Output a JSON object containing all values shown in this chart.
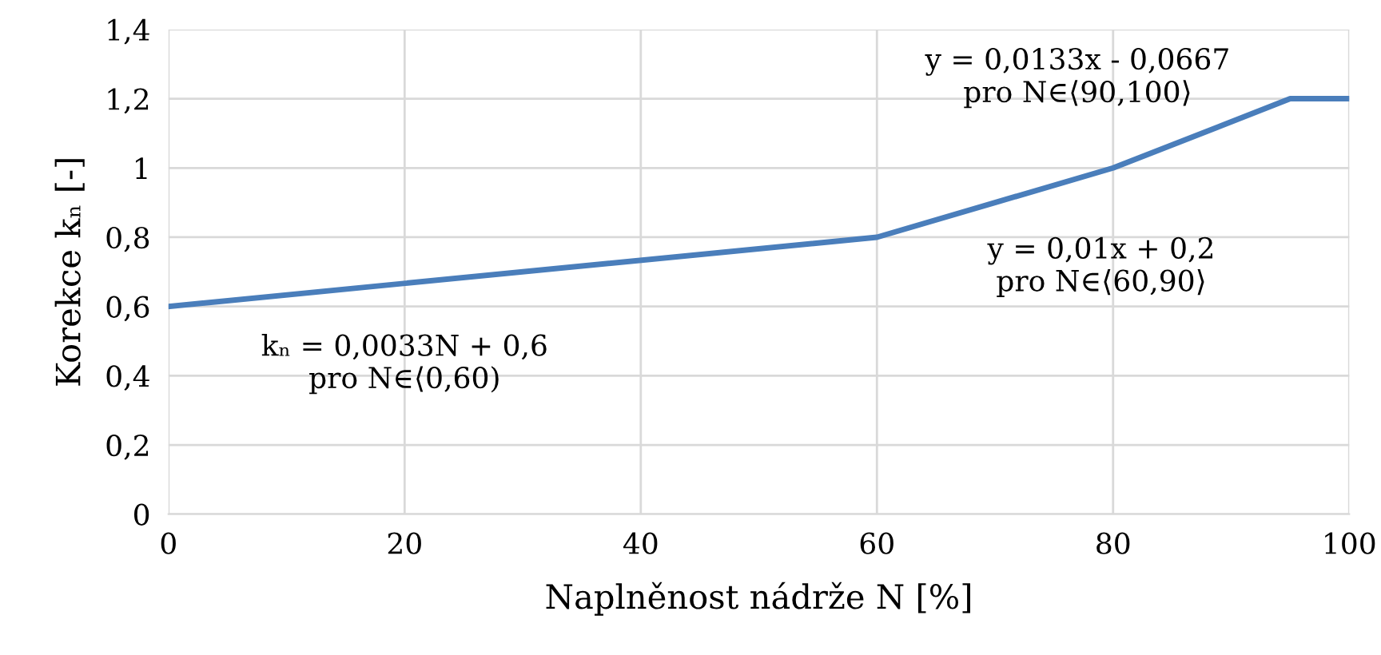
{
  "chart_data": {
    "type": "line",
    "xlabel": "Naplněnost nádrže N [%]",
    "ylabel": "Korekce kₙ [-]",
    "x": [
      0,
      60,
      80,
      95,
      100
    ],
    "series": [
      {
        "color": "#4a7ebb",
        "values": [
          0.6,
          0.8,
          1.0,
          1.2,
          1.2
        ]
      }
    ],
    "xlim": [
      0,
      100
    ],
    "xticks": [
      0,
      20,
      40,
      60,
      80,
      100
    ],
    "ylim": [
      0,
      1.4
    ],
    "yticks": [
      0,
      {
        "value": 0.2,
        "label": "0,2"
      },
      {
        "value": 0.4,
        "label": "0,4"
      },
      {
        "value": 0.6,
        "label": "0,6"
      },
      {
        "value": 0.8,
        "label": "0,8"
      },
      1,
      {
        "value": 1.2,
        "label": "1,2"
      },
      {
        "value": 1.4,
        "label": "1,4"
      }
    ],
    "grid": true,
    "marker": "none",
    "line_style": "solid",
    "annotations": [
      "kₙ = 0,0033N + 0,6\npro N∈⟨0,60)",
      "y = 0,01x + 0,2\npro N∈⟨60,90⟩",
      "y = 0,0133x - 0,0667\npro N∈⟨90,100⟩"
    ]
  }
}
